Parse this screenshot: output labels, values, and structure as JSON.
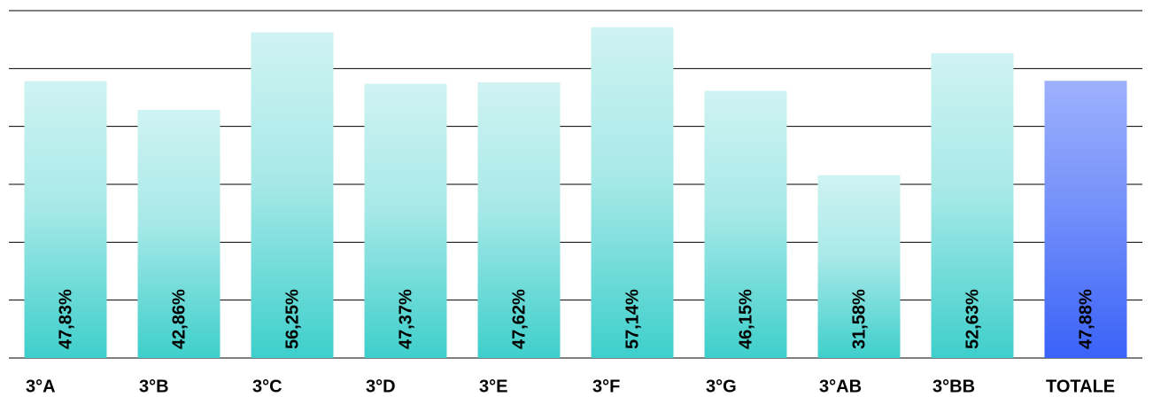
{
  "chart_data": {
    "type": "bar",
    "categories": [
      "3°A",
      "3°B",
      "3°C",
      "3°D",
      "3°E",
      "3°F",
      "3°G",
      "3°AB",
      "3°BB",
      "TOTALE"
    ],
    "values": [
      47.83,
      42.86,
      56.25,
      47.37,
      47.62,
      57.14,
      46.15,
      31.58,
      52.63,
      47.88
    ],
    "value_labels": [
      "47,83%",
      "42,86%",
      "56,25%",
      "47,37%",
      "47,62%",
      "57,14%",
      "46,15%",
      "31,58%",
      "52,63%",
      "47,88%"
    ],
    "colors": [
      "#3ecfcb",
      "#3ecfcb",
      "#3ecfcb",
      "#3ecfcb",
      "#3ecfcb",
      "#3ecfcb",
      "#3ecfcb",
      "#3ecfcb",
      "#3ecfcb",
      "#3a62f8"
    ],
    "ylim": [
      0,
      60
    ],
    "yticks": [
      0,
      10,
      20,
      30,
      40,
      50,
      60
    ],
    "grid": true
  }
}
